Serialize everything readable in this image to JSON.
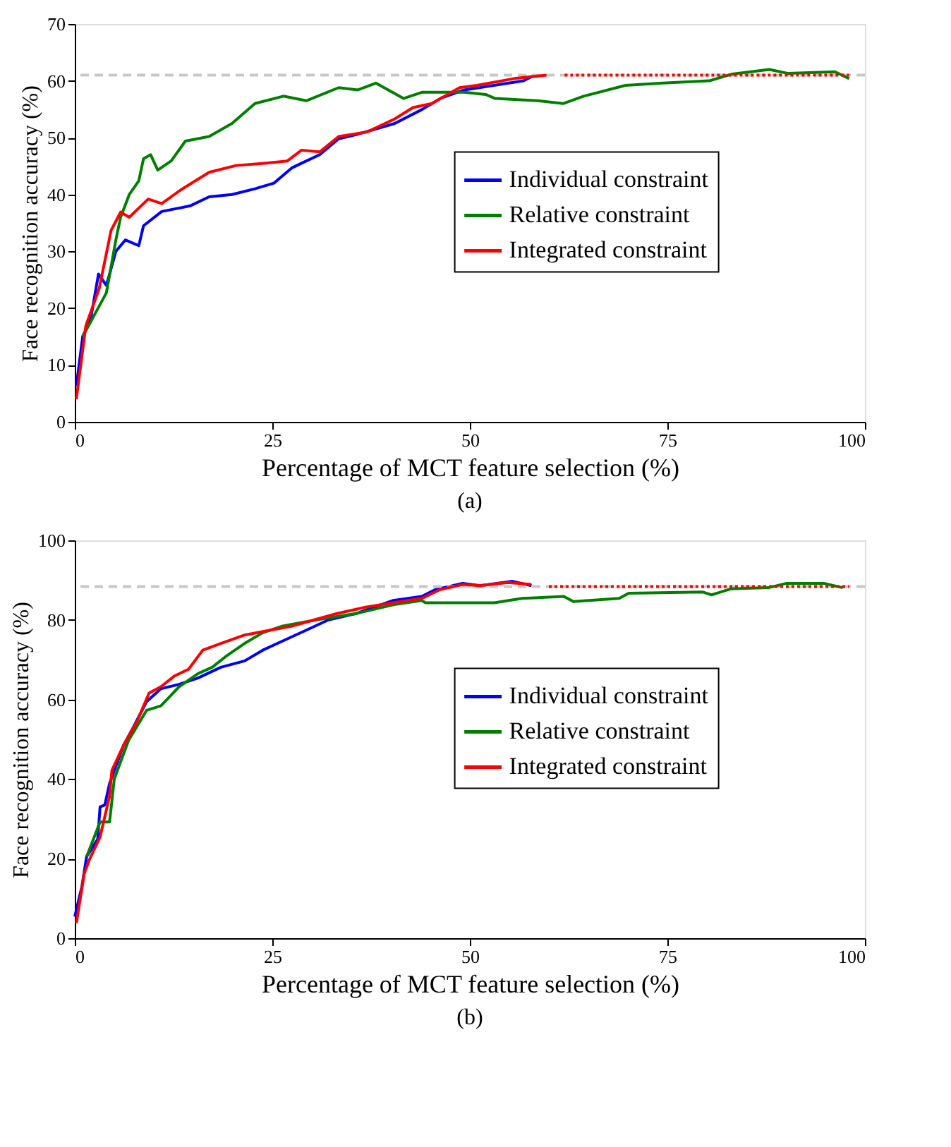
{
  "chart_data": [
    {
      "type": "line",
      "xlabel": "Percentage of MCT feature selection (%)",
      "ylabel": "Face recognition accuracy (%)",
      "annotations": [
        "(a)"
      ],
      "xlim": [
        0,
        100
      ],
      "xticks": [
        0,
        25,
        50,
        75,
        100
      ],
      "ylim": [
        0,
        70
      ],
      "yticks": [
        0,
        10,
        20,
        30,
        40,
        50,
        60,
        70
      ],
      "grid": false,
      "legend": "right",
      "line_style": "solid",
      "marker": "none",
      "ref_lines": [
        {
          "axis": "y",
          "value": 61,
          "color": "#c8c8c8",
          "line_style": "dashed"
        }
      ],
      "series": [
        {
          "name": "Individual constraint",
          "color": "#0000ff",
          "x": [
            0.2,
            1,
            2,
            3,
            4,
            4.6,
            5.2,
            6.4,
            8.1,
            8.7,
            11,
            14.6,
            17,
            19.9,
            22.8,
            25.2,
            27.5,
            28.7,
            31,
            33.4,
            35.8,
            40.5,
            44,
            46.4,
            49.3,
            56.8,
            57.9
          ],
          "values": [
            6.3,
            15,
            18,
            26,
            24,
            27,
            30,
            32,
            31,
            34.5,
            37,
            38,
            39.6,
            40,
            41,
            42,
            44.7,
            45.5,
            47,
            49.8,
            50.6,
            52.5,
            55,
            57,
            58.4,
            60,
            60.8
          ]
        },
        {
          "name": "Relative constraint",
          "color": "#008000",
          "x": [
            1,
            4,
            5.2,
            5.8,
            6.9,
            8.1,
            8.7,
            9.6,
            10.5,
            12.2,
            14,
            17,
            19.9,
            22.8,
            26.4,
            29.3,
            33.4,
            35.8,
            38.1,
            41.6,
            44,
            49.3,
            52,
            53.2,
            58.5,
            61.8,
            64.4,
            69.7,
            74.4,
            80.3,
            83.2,
            87.9,
            90.3,
            96.2,
            98
          ],
          "values": [
            15,
            22.7,
            32,
            36,
            40,
            42.4,
            46.3,
            47,
            44.3,
            45.9,
            49.4,
            50.2,
            52.5,
            56,
            57.3,
            56.5,
            58.8,
            58.4,
            59.6,
            56.9,
            58,
            58,
            57.6,
            56.9,
            56.5,
            56,
            57.3,
            59.2,
            59.6,
            60,
            61.2,
            62,
            61.3,
            61.6,
            60.4
          ]
        },
        {
          "name": "Integrated constraint",
          "color": "#ff0000",
          "x": [
            0.2,
            1.4,
            3.1,
            4.6,
            5.8,
            6.9,
            9.3,
            11,
            13.4,
            17,
            20.4,
            24,
            26.9,
            28.7,
            31,
            33.4,
            37,
            40.5,
            42.8,
            45.2,
            48.7,
            50.9,
            55.6,
            59.7
          ],
          "values": [
            4,
            16.9,
            23.5,
            33.7,
            36.9,
            36,
            39.2,
            38.4,
            40.8,
            43.9,
            45.1,
            45.5,
            45.9,
            47.8,
            47.5,
            50.2,
            51,
            53.3,
            55.3,
            56,
            58.8,
            59.2,
            60.4,
            61
          ]
        },
        {
          "color": "#ff0000",
          "line_style": "dotted",
          "x": [
            62,
            98
          ],
          "values": [
            61,
            61
          ]
        }
      ]
    },
    {
      "type": "line",
      "xlabel": "Percentage of MCT feature selection (%)",
      "ylabel": "Face recognition accuracy (%)",
      "annotations": [
        "(b)"
      ],
      "xlim": [
        0,
        100
      ],
      "xticks": [
        0,
        25,
        50,
        75,
        100
      ],
      "ylim": [
        0,
        100
      ],
      "yticks": [
        0,
        20,
        40,
        60,
        80,
        100
      ],
      "grid": false,
      "legend": "right",
      "line_style": "solid",
      "marker": "none",
      "ref_lines": [
        {
          "axis": "y",
          "value": 88.4,
          "color": "#c8c8c8",
          "line_style": "dashed"
        }
      ],
      "series": [
        {
          "name": "Individual constraint",
          "color": "#0000ff",
          "x": [
            0,
            0.9,
            1.5,
            2.9,
            3.2,
            3.8,
            4.4,
            6.2,
            7.4,
            9.1,
            10.9,
            13.2,
            15.6,
            18.5,
            21.5,
            23.8,
            26.2,
            29.7,
            32.1,
            35.6,
            40.3,
            43.9,
            45.6,
            49.1,
            51.3,
            55.4,
            57.8
          ],
          "values": [
            5.4,
            13,
            20.5,
            24.9,
            33,
            33.5,
            38.9,
            48.6,
            53,
            59.5,
            62.7,
            63.8,
            65.4,
            68.1,
            69.7,
            72.4,
            74.6,
            77.8,
            80,
            81.6,
            84.9,
            85.9,
            87.6,
            89.2,
            88.6,
            89.7,
            88.6
          ]
        },
        {
          "name": "Relative constraint",
          "color": "#008000",
          "x": [
            1.5,
            3.2,
            4.4,
            5,
            6.8,
            9.1,
            10.9,
            13.2,
            15.6,
            17.4,
            19.1,
            21.5,
            23.8,
            26.2,
            29.1,
            32.1,
            35.6,
            40.3,
            43.9,
            44.4,
            49.1,
            53.1,
            56.6,
            61.9,
            63.1,
            68.9,
            70.1,
            79.5,
            80.6,
            83,
            87.8,
            90.1,
            94.8,
            97.2
          ],
          "values": [
            20.5,
            29.2,
            29.2,
            40,
            49.7,
            57.3,
            58.4,
            63.2,
            66.5,
            68.1,
            70.8,
            74.1,
            76.8,
            78.4,
            79.5,
            80.5,
            81.6,
            83.8,
            84.9,
            84.3,
            84.3,
            84.3,
            85.4,
            85.9,
            84.6,
            85.4,
            86.7,
            87,
            86.3,
            87.8,
            88.1,
            89.2,
            89.2,
            88.1
          ]
        },
        {
          "name": "Integrated constraint",
          "color": "#ff0000",
          "x": [
            0.2,
            1.2,
            1.8,
            3.2,
            4.4,
            4.7,
            6.2,
            7.9,
            9.4,
            10.9,
            12.6,
            14.4,
            16.2,
            18.5,
            21.5,
            24.4,
            27.4,
            30.3,
            33.2,
            36.8,
            40.3,
            43.9,
            46.2,
            49.1,
            51.3,
            54.8,
            57.8
          ],
          "values": [
            3.8,
            16.2,
            19.5,
            25.4,
            35.7,
            42.2,
            48.6,
            54.6,
            61.6,
            63.2,
            65.9,
            67.6,
            72.4,
            74.1,
            76.2,
            77.3,
            78.4,
            80,
            81.6,
            83.2,
            84.3,
            85.4,
            87.6,
            88.9,
            88.6,
            89.4,
            88.9
          ]
        },
        {
          "color": "#ff0000",
          "line_style": "dotted",
          "x": [
            60,
            98
          ],
          "values": [
            88.4,
            88.4
          ]
        }
      ]
    }
  ]
}
